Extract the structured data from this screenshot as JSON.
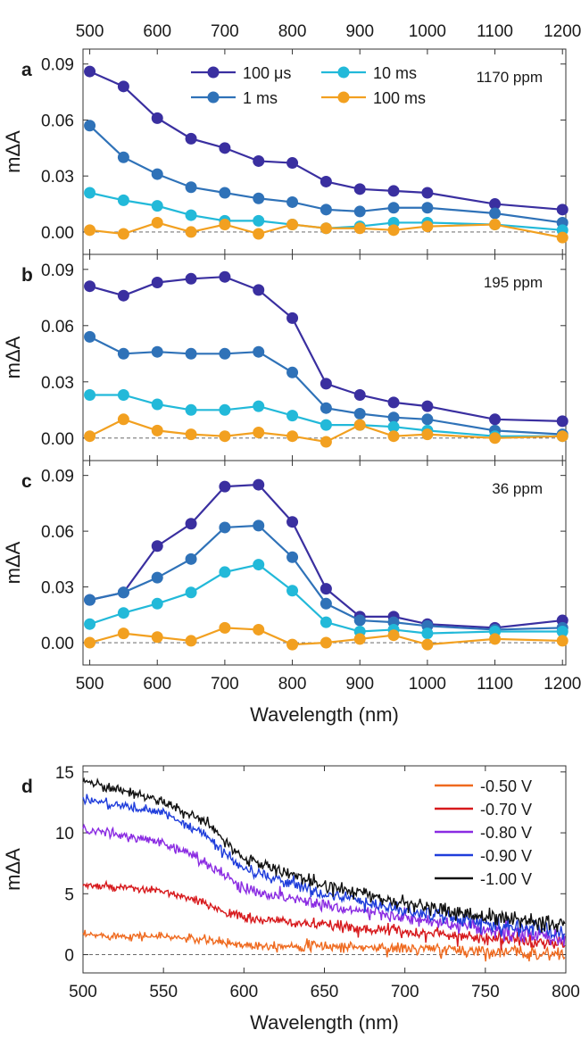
{
  "chart_data": [
    {
      "panel": "a",
      "type": "line",
      "annotation": "1170 ppm",
      "xlabel": "",
      "ylabel": "mΔA",
      "xlim": [
        490,
        1205
      ],
      "ylim": [
        -0.012,
        0.098
      ],
      "x_ticks": [
        500,
        600,
        700,
        800,
        900,
        1000,
        1100,
        1200
      ],
      "y_ticks": [
        0.0,
        0.03,
        0.06,
        0.09
      ],
      "y_tick_labels": [
        "0.00",
        "0.03",
        "0.06",
        "0.09"
      ],
      "x_tick_labels_top": [
        "500",
        "600",
        "700",
        "800",
        "900",
        "1000",
        "1100",
        "1200"
      ],
      "legend": "top",
      "x": [
        500,
        550,
        600,
        650,
        700,
        750,
        800,
        850,
        900,
        950,
        1000,
        1100,
        1200
      ],
      "series": [
        {
          "name": "100 μs",
          "color": "#3a2fa0",
          "values": [
            0.086,
            0.078,
            0.061,
            0.05,
            0.045,
            0.038,
            0.037,
            0.027,
            0.023,
            0.022,
            0.021,
            0.015,
            0.012
          ]
        },
        {
          "name": "1 ms",
          "color": "#2f72b8",
          "values": [
            0.057,
            0.04,
            0.031,
            0.024,
            0.021,
            0.018,
            0.016,
            0.012,
            0.011,
            0.013,
            0.013,
            0.01,
            0.005
          ]
        },
        {
          "name": "10 ms",
          "color": "#22b9d9",
          "values": [
            0.021,
            0.017,
            0.014,
            0.009,
            0.006,
            0.006,
            0.004,
            0.002,
            0.003,
            0.005,
            0.005,
            0.004,
            0.001
          ]
        },
        {
          "name": "100 ms",
          "color": "#f2a020",
          "values": [
            0.001,
            -0.001,
            0.005,
            0.0,
            0.004,
            -0.001,
            0.004,
            0.002,
            0.002,
            0.001,
            0.003,
            0.004,
            -0.003
          ]
        }
      ]
    },
    {
      "panel": "b",
      "type": "line",
      "annotation": "195 ppm",
      "xlabel": "",
      "ylabel": "mΔA",
      "xlim": [
        490,
        1205
      ],
      "ylim": [
        -0.012,
        0.098
      ],
      "x_ticks": [
        500,
        600,
        700,
        800,
        900,
        1000,
        1100,
        1200
      ],
      "y_ticks": [
        0.0,
        0.03,
        0.06,
        0.09
      ],
      "y_tick_labels": [
        "0.00",
        "0.03",
        "0.06",
        "0.09"
      ],
      "x": [
        500,
        550,
        600,
        650,
        700,
        750,
        800,
        850,
        900,
        950,
        1000,
        1100,
        1200
      ],
      "series": [
        {
          "name": "100 μs",
          "color": "#3a2fa0",
          "values": [
            0.081,
            0.076,
            0.083,
            0.085,
            0.086,
            0.079,
            0.064,
            0.029,
            0.023,
            0.019,
            0.017,
            0.01,
            0.009
          ]
        },
        {
          "name": "1 ms",
          "color": "#2f72b8",
          "values": [
            0.054,
            0.045,
            0.046,
            0.045,
            0.045,
            0.046,
            0.035,
            0.016,
            0.013,
            0.011,
            0.01,
            0.004,
            0.002
          ]
        },
        {
          "name": "10 ms",
          "color": "#22b9d9",
          "values": [
            0.023,
            0.023,
            0.018,
            0.015,
            0.015,
            0.017,
            0.012,
            0.007,
            0.007,
            0.006,
            0.004,
            0.001,
            0.001
          ]
        },
        {
          "name": "100 ms",
          "color": "#f2a020",
          "values": [
            0.001,
            0.01,
            0.004,
            0.002,
            0.001,
            0.003,
            0.001,
            -0.002,
            0.007,
            0.001,
            0.002,
            0.0,
            0.001
          ]
        }
      ]
    },
    {
      "panel": "c",
      "type": "line",
      "annotation": "36 ppm",
      "xlabel": "Wavelength (nm)",
      "ylabel": "mΔA",
      "xlim": [
        490,
        1205
      ],
      "ylim": [
        -0.012,
        0.098
      ],
      "x_ticks": [
        500,
        600,
        700,
        800,
        900,
        1000,
        1100,
        1200
      ],
      "x_tick_labels": [
        "500",
        "600",
        "700",
        "800",
        "900",
        "1000",
        "1100",
        "1200"
      ],
      "y_ticks": [
        0.0,
        0.03,
        0.06,
        0.09
      ],
      "y_tick_labels": [
        "0.00",
        "0.03",
        "0.06",
        "0.09"
      ],
      "x": [
        500,
        550,
        600,
        650,
        700,
        750,
        800,
        850,
        900,
        950,
        1000,
        1100,
        1200
      ],
      "series": [
        {
          "name": "100 μs",
          "color": "#3a2fa0",
          "values": [
            0.023,
            0.027,
            0.052,
            0.064,
            0.084,
            0.085,
            0.065,
            0.029,
            0.014,
            0.014,
            0.01,
            0.008,
            0.012
          ]
        },
        {
          "name": "1 ms",
          "color": "#2f72b8",
          "values": [
            0.023,
            0.027,
            0.035,
            0.045,
            0.062,
            0.063,
            0.046,
            0.021,
            0.012,
            0.011,
            0.009,
            0.007,
            0.008
          ]
        },
        {
          "name": "10 ms",
          "color": "#22b9d9",
          "values": [
            0.01,
            0.016,
            0.021,
            0.027,
            0.038,
            0.042,
            0.028,
            0.011,
            0.006,
            0.007,
            0.005,
            0.006,
            0.006
          ]
        },
        {
          "name": "100 ms",
          "color": "#f2a020",
          "values": [
            0.0,
            0.005,
            0.003,
            0.001,
            0.008,
            0.007,
            -0.001,
            0.0,
            0.002,
            0.004,
            -0.001,
            0.002,
            0.001
          ]
        }
      ]
    },
    {
      "panel": "d",
      "type": "line",
      "xlabel": "Wavelength (nm)",
      "ylabel": "mΔA",
      "xlim": [
        500,
        800
      ],
      "ylim": [
        -1.5,
        15.5
      ],
      "x_ticks": [
        500,
        550,
        600,
        650,
        700,
        750,
        800
      ],
      "x_tick_labels": [
        "500",
        "550",
        "600",
        "650",
        "700",
        "750",
        "800"
      ],
      "y_ticks": [
        0,
        5,
        10,
        15
      ],
      "y_tick_labels": [
        "0",
        "5",
        "10",
        "15"
      ],
      "legend": "top-right",
      "noise_note": "traces are noisy spectra; control points below, noise added when drawing",
      "series": [
        {
          "name": "-0.50 V",
          "color": "#ef6a1f",
          "noise": 0.25,
          "points": [
            [
              500,
              1.6
            ],
            [
              550,
              1.5
            ],
            [
              575,
              1.2
            ],
            [
              600,
              0.8
            ],
            [
              650,
              0.7
            ],
            [
              700,
              0.5
            ],
            [
              750,
              0.3
            ],
            [
              800,
              0.0
            ]
          ]
        },
        {
          "name": "-0.70 V",
          "color": "#d7191c",
          "noise": 0.25,
          "points": [
            [
              500,
              5.7
            ],
            [
              550,
              5.2
            ],
            [
              575,
              4.2
            ],
            [
              600,
              3.0
            ],
            [
              650,
              2.4
            ],
            [
              700,
              1.9
            ],
            [
              750,
              1.4
            ],
            [
              800,
              0.8
            ]
          ]
        },
        {
          "name": "-0.80 V",
          "color": "#8a2be2",
          "noise": 0.3,
          "points": [
            [
              500,
              10.3
            ],
            [
              550,
              9.2
            ],
            [
              575,
              7.7
            ],
            [
              600,
              5.4
            ],
            [
              650,
              4.1
            ],
            [
              700,
              3.0
            ],
            [
              750,
              2.0
            ],
            [
              800,
              1.3
            ]
          ]
        },
        {
          "name": "-0.90 V",
          "color": "#1f3ddb",
          "noise": 0.3,
          "points": [
            [
              500,
              12.8
            ],
            [
              550,
              11.6
            ],
            [
              575,
              9.9
            ],
            [
              600,
              7.0
            ],
            [
              650,
              5.0
            ],
            [
              700,
              3.6
            ],
            [
              750,
              2.6
            ],
            [
              800,
              1.8
            ]
          ]
        },
        {
          "name": "-1.00 V",
          "color": "#111111",
          "noise": 0.3,
          "points": [
            [
              500,
              14.3
            ],
            [
              550,
              12.6
            ],
            [
              575,
              10.9
            ],
            [
              600,
              7.9
            ],
            [
              650,
              5.7
            ],
            [
              700,
              4.2
            ],
            [
              750,
              3.1
            ],
            [
              800,
              2.5
            ]
          ]
        }
      ]
    }
  ],
  "figure": {
    "panel_letters": [
      "a",
      "b",
      "c",
      "d"
    ]
  }
}
